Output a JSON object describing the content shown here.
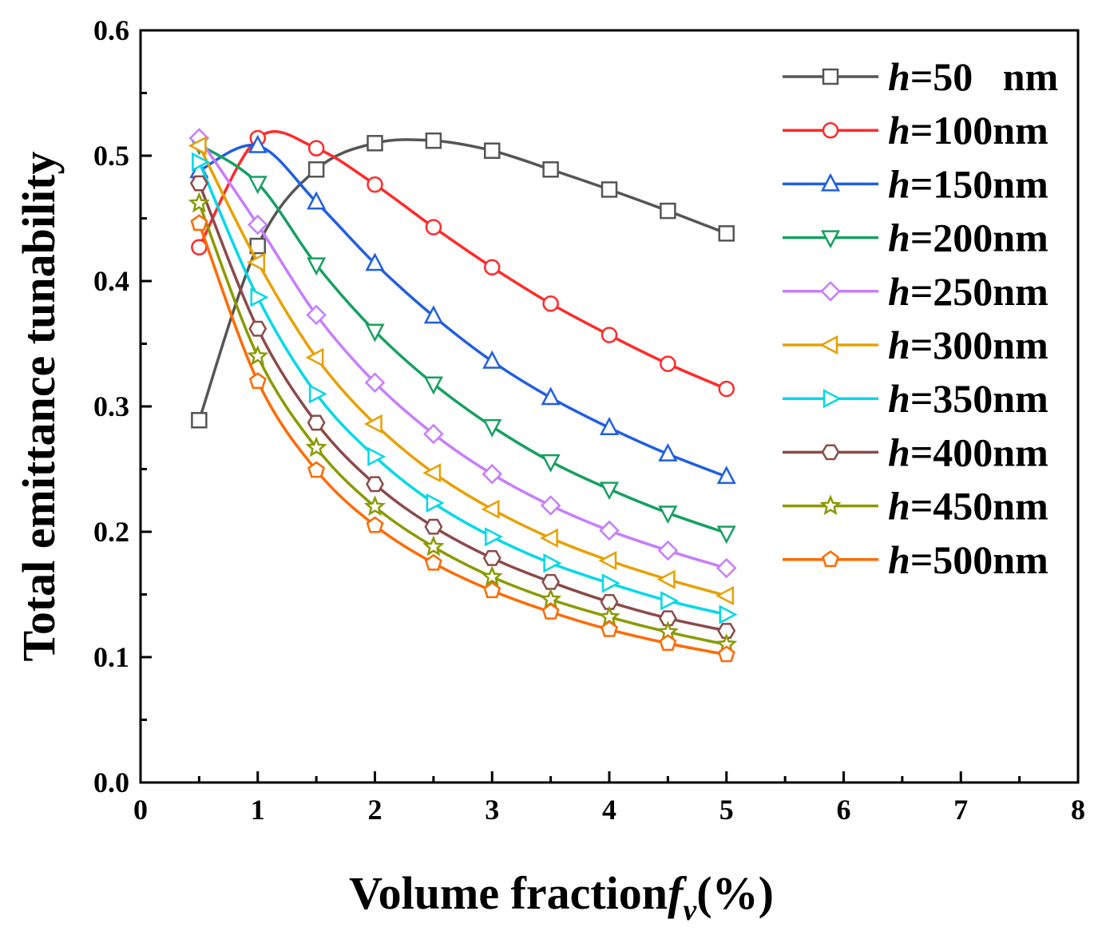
{
  "chart_data": {
    "type": "line",
    "title": "",
    "xlabel": "Volume fraction",
    "xlabel_symbol": "f",
    "xlabel_subscript": "v",
    "xlabel_suffix": "(%)",
    "ylabel": "Total emittance tunability",
    "xlim": [
      0,
      8
    ],
    "ylim": [
      0.0,
      0.6
    ],
    "x_ticks": [
      0,
      1,
      2,
      3,
      4,
      5,
      6,
      7,
      8
    ],
    "x_tick_labels": [
      "0",
      "1",
      "2",
      "3",
      "4",
      "5",
      "6",
      "7",
      "8"
    ],
    "y_ticks": [
      0.0,
      0.1,
      0.2,
      0.3,
      0.4,
      0.5,
      0.6
    ],
    "y_tick_labels": [
      "0.0",
      "0.1",
      "0.2",
      "0.3",
      "0.4",
      "0.5",
      "0.6"
    ],
    "grid": false,
    "legend_position": "top-right",
    "x": [
      0.5,
      1.0,
      1.5,
      2.0,
      2.5,
      3.0,
      3.5,
      4.0,
      4.5,
      5.0
    ],
    "series": [
      {
        "name": "h=50   nm",
        "prefix": "h",
        "rest": "=50   nm",
        "color": "#555555",
        "marker": "square",
        "values": [
          0.289,
          0.428,
          0.489,
          0.51,
          0.512,
          0.504,
          0.489,
          0.473,
          0.456,
          0.438
        ]
      },
      {
        "name": "h=100nm",
        "prefix": "h",
        "rest": "=100nm",
        "color": "#ff2a2a",
        "marker": "circle",
        "values": [
          0.427,
          0.514,
          0.506,
          0.477,
          0.443,
          0.411,
          0.382,
          0.357,
          0.334,
          0.314
        ]
      },
      {
        "name": "h=150nm",
        "prefix": "h",
        "rest": "=150nm",
        "color": "#1f5fe0",
        "marker": "triangle-up",
        "values": [
          0.488,
          0.508,
          0.463,
          0.414,
          0.372,
          0.336,
          0.307,
          0.283,
          0.262,
          0.244
        ]
      },
      {
        "name": "h=200nm",
        "prefix": "h",
        "rest": "=200nm",
        "color": "#16a060",
        "marker": "triangle-down",
        "values": [
          0.509,
          0.478,
          0.413,
          0.36,
          0.318,
          0.284,
          0.256,
          0.234,
          0.215,
          0.199
        ]
      },
      {
        "name": "h=250nm",
        "prefix": "h",
        "rest": "=250nm",
        "color": "#c77dff",
        "marker": "diamond",
        "values": [
          0.514,
          0.445,
          0.373,
          0.319,
          0.278,
          0.246,
          0.221,
          0.201,
          0.185,
          0.171
        ]
      },
      {
        "name": "h=300nm",
        "prefix": "h",
        "rest": "=300nm",
        "color": "#e8a000",
        "marker": "triangle-left",
        "values": [
          0.508,
          0.415,
          0.339,
          0.286,
          0.247,
          0.218,
          0.195,
          0.177,
          0.162,
          0.149
        ]
      },
      {
        "name": "h=350nm",
        "prefix": "h",
        "rest": "=350nm",
        "color": "#00d8e8",
        "marker": "triangle-right",
        "values": [
          0.495,
          0.387,
          0.31,
          0.26,
          0.223,
          0.196,
          0.175,
          0.159,
          0.145,
          0.134
        ]
      },
      {
        "name": "h=400nm",
        "prefix": "h",
        "rest": "=400nm",
        "color": "#8b4a4a",
        "marker": "hexagon",
        "values": [
          0.478,
          0.362,
          0.287,
          0.238,
          0.204,
          0.179,
          0.16,
          0.144,
          0.131,
          0.121
        ]
      },
      {
        "name": "h=450nm",
        "prefix": "h",
        "rest": "=450nm",
        "color": "#8a9a00",
        "marker": "star",
        "values": [
          0.462,
          0.34,
          0.267,
          0.22,
          0.188,
          0.164,
          0.146,
          0.132,
          0.12,
          0.11
        ]
      },
      {
        "name": "h=500nm",
        "prefix": "h",
        "rest": "=500nm",
        "color": "#ff6a00",
        "marker": "pentagon",
        "values": [
          0.446,
          0.32,
          0.249,
          0.205,
          0.175,
          0.153,
          0.136,
          0.122,
          0.111,
          0.102
        ]
      }
    ]
  }
}
